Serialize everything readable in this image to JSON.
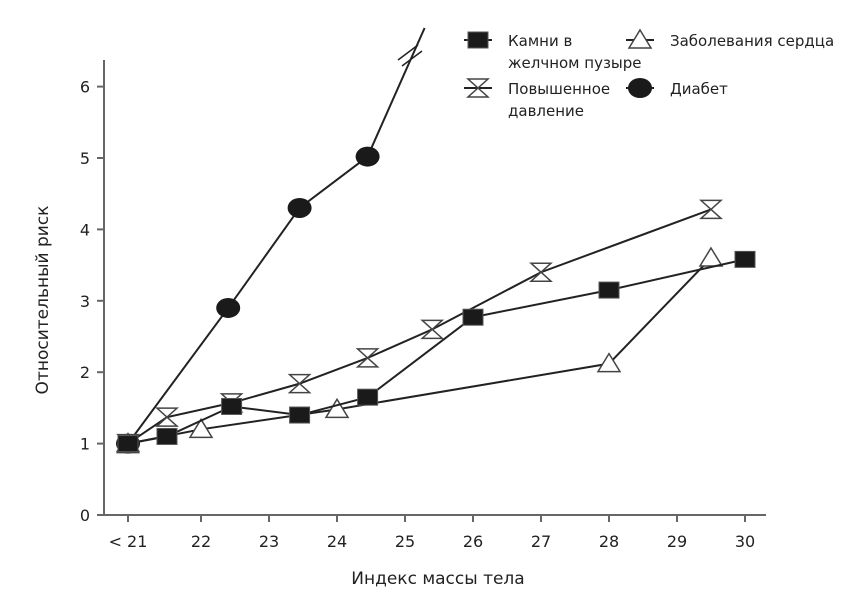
{
  "chart_data": {
    "type": "line",
    "title": "",
    "xlabel": "Индекс массы тела",
    "ylabel": "Относительный риск",
    "x_ticks": [
      {
        "value": 21,
        "label": "< 21"
      },
      {
        "value": 22,
        "label": "22"
      },
      {
        "value": 23,
        "label": "23"
      },
      {
        "value": 24,
        "label": "24"
      },
      {
        "value": 25,
        "label": "25"
      },
      {
        "value": 26,
        "label": "26"
      },
      {
        "value": 27,
        "label": "27"
      },
      {
        "value": 28,
        "label": "28"
      },
      {
        "value": 29,
        "label": "29"
      },
      {
        "value": 30,
        "label": "30"
      }
    ],
    "y_ticks": [
      0,
      1,
      2,
      3,
      4,
      5,
      6
    ],
    "xlim": [
      20.6,
      30.3
    ],
    "ylim": [
      0,
      6.8
    ],
    "grid": false,
    "legend_position": "top-right",
    "series": [
      {
        "name": "Камни в желчном пузыре",
        "marker": "filled-square",
        "color": "#1a1a1a",
        "x": [
          21,
          21.5,
          22.45,
          23.45,
          24.45,
          26,
          28,
          30
        ],
        "y": [
          1.0,
          1.1,
          1.52,
          1.4,
          1.65,
          2.77,
          3.15,
          3.58
        ]
      },
      {
        "name": "Заболевания сердца",
        "marker": "open-triangle",
        "color": "#1a1a1a",
        "x": [
          21,
          22,
          24,
          28,
          29.5
        ],
        "y": [
          1.0,
          1.2,
          1.48,
          2.12,
          3.6
        ]
      },
      {
        "name": "Повышенное давление",
        "marker": "open-hourglass",
        "color": "#1a1a1a",
        "x": [
          21,
          21.5,
          22.45,
          23.45,
          24.45,
          25.4,
          27,
          29.5
        ],
        "y": [
          1.0,
          1.37,
          1.57,
          1.84,
          2.2,
          2.6,
          3.4,
          4.28
        ]
      },
      {
        "name": "Диабет",
        "marker": "filled-circle",
        "color": "#1a1a1a",
        "x": [
          21,
          22.4,
          23.45,
          24.45
        ],
        "y": [
          1.0,
          2.9,
          4.3,
          5.02
        ],
        "continues_off_scale": true
      }
    ],
    "legend": [
      {
        "label_lines": [
          "Камни в",
          "желчном пузыре"
        ],
        "marker": "filled-square"
      },
      {
        "label_lines": [
          "Заболевания сердца"
        ],
        "marker": "open-triangle"
      },
      {
        "label_lines": [
          "Повышенное",
          "давление"
        ],
        "marker": "open-hourglass"
      },
      {
        "label_lines": [
          "Диабет"
        ],
        "marker": "filled-circle"
      }
    ]
  }
}
